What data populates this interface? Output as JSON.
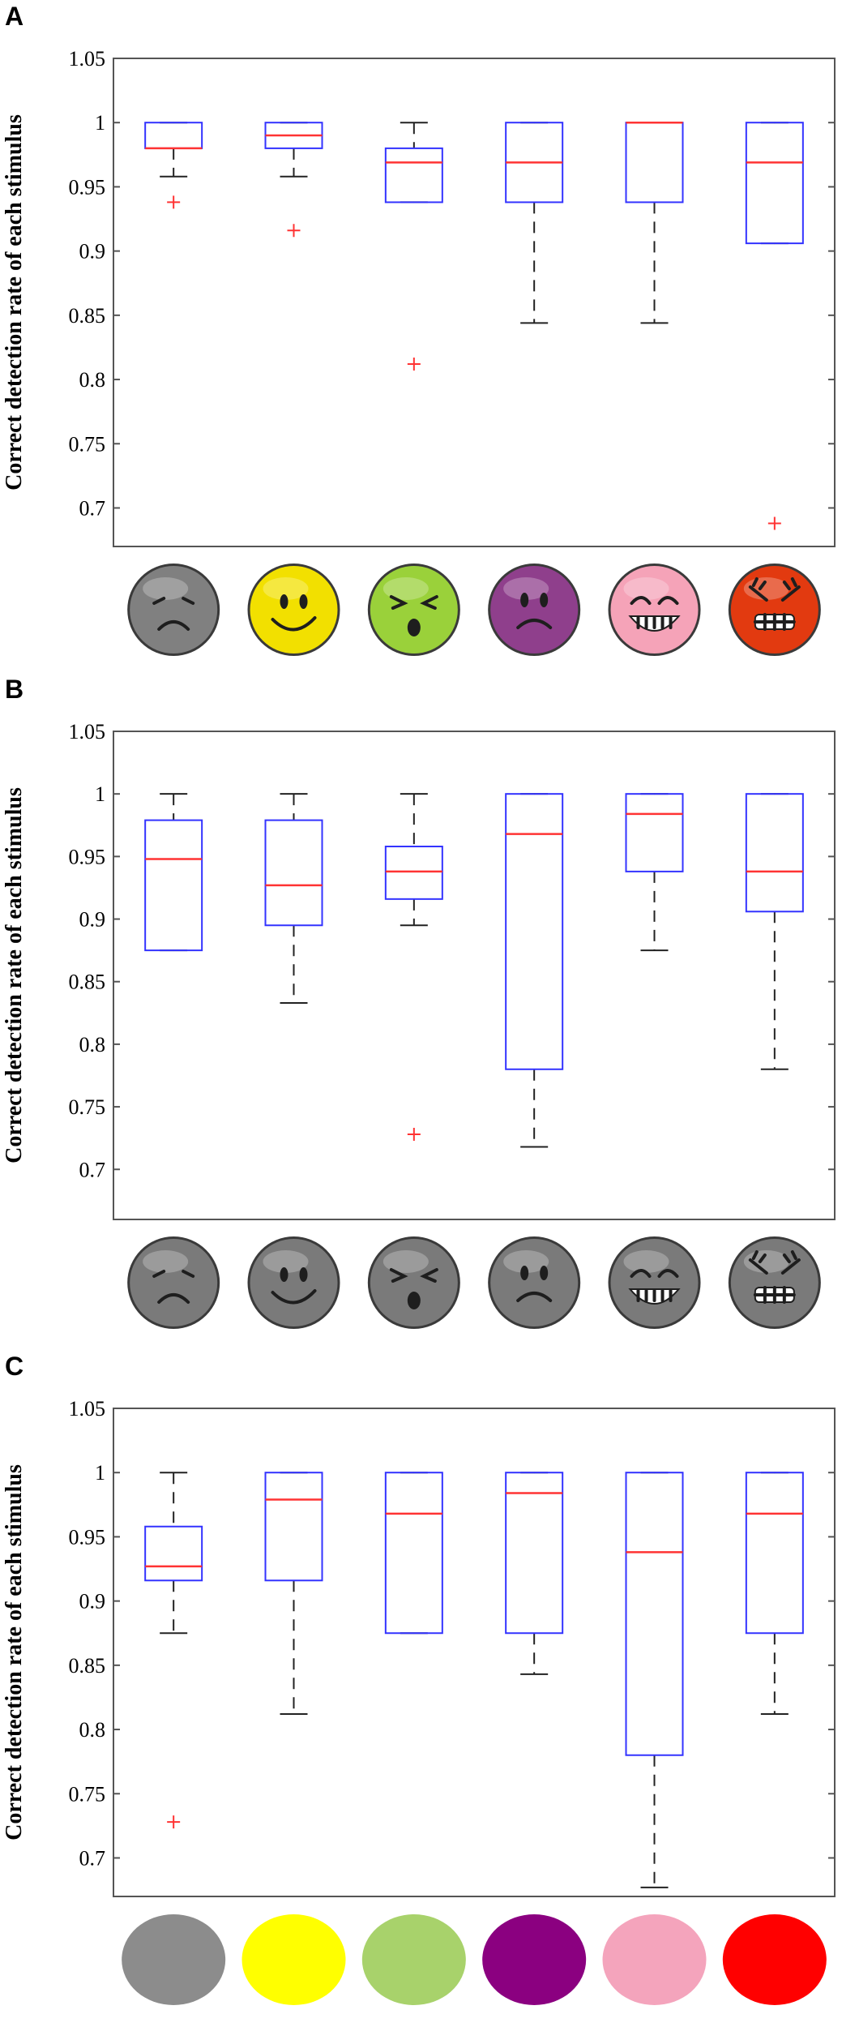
{
  "panels": [
    {
      "letter": "A",
      "icon_style": "color-face",
      "chart_data": {
        "type": "box",
        "ylabel": "Correct detection rate of each stimulus",
        "ylim": [
          0.67,
          1.05
        ],
        "yticks": [
          0.7,
          0.75,
          0.8,
          0.85,
          0.9,
          0.95,
          1,
          1.05
        ],
        "ytick_labels": [
          "0.7",
          "0.75",
          "0.8",
          "0.85",
          "0.9",
          "0.95",
          "1",
          "1.05"
        ],
        "categories": [
          "sad",
          "happy",
          "disgust",
          "sorrow",
          "laugh",
          "angry"
        ],
        "boxes": [
          {
            "whisker_low": 0.958,
            "q1": 0.98,
            "median": 0.98,
            "q3": 1.0,
            "whisker_high": 1.0,
            "outliers": [
              0.938
            ]
          },
          {
            "whisker_low": 0.958,
            "q1": 0.98,
            "median": 0.99,
            "q3": 1.0,
            "whisker_high": 1.0,
            "outliers": [
              0.916
            ]
          },
          {
            "whisker_low": 0.938,
            "q1": 0.938,
            "median": 0.969,
            "q3": 0.98,
            "whisker_high": 1.0,
            "outliers": [
              0.812
            ]
          },
          {
            "whisker_low": 0.844,
            "q1": 0.938,
            "median": 0.969,
            "q3": 1.0,
            "whisker_high": 1.0,
            "outliers": []
          },
          {
            "whisker_low": 0.844,
            "q1": 0.938,
            "median": 1.0,
            "q3": 1.0,
            "whisker_high": 1.0,
            "outliers": []
          },
          {
            "whisker_low": 0.906,
            "q1": 0.906,
            "median": 0.969,
            "q3": 1.0,
            "whisker_high": 1.0,
            "outliers": [
              0.688
            ]
          }
        ]
      }
    },
    {
      "letter": "B",
      "icon_style": "gray-face",
      "chart_data": {
        "type": "box",
        "ylabel": "Correct detection rate of each stimulus",
        "ylim": [
          0.66,
          1.05
        ],
        "yticks": [
          0.7,
          0.75,
          0.8,
          0.85,
          0.9,
          0.95,
          1,
          1.05
        ],
        "ytick_labels": [
          "0.7",
          "0.75",
          "0.8",
          "0.85",
          "0.9",
          "0.95",
          "1",
          "1.05"
        ],
        "categories": [
          "sad",
          "happy",
          "disgust",
          "sorrow",
          "laugh",
          "angry"
        ],
        "boxes": [
          {
            "whisker_low": 0.875,
            "q1": 0.875,
            "median": 0.948,
            "q3": 0.979,
            "whisker_high": 1.0,
            "outliers": []
          },
          {
            "whisker_low": 0.833,
            "q1": 0.895,
            "median": 0.927,
            "q3": 0.979,
            "whisker_high": 1.0,
            "outliers": []
          },
          {
            "whisker_low": 0.895,
            "q1": 0.916,
            "median": 0.938,
            "q3": 0.958,
            "whisker_high": 1.0,
            "outliers": [
              0.728
            ]
          },
          {
            "whisker_low": 0.718,
            "q1": 0.78,
            "median": 0.968,
            "q3": 1.0,
            "whisker_high": 1.0,
            "outliers": []
          },
          {
            "whisker_low": 0.875,
            "q1": 0.938,
            "median": 0.984,
            "q3": 1.0,
            "whisker_high": 1.0,
            "outliers": []
          },
          {
            "whisker_low": 0.78,
            "q1": 0.906,
            "median": 0.938,
            "q3": 1.0,
            "whisker_high": 1.0,
            "outliers": []
          }
        ]
      }
    },
    {
      "letter": "C",
      "icon_style": "color-disc",
      "chart_data": {
        "type": "box",
        "ylabel": "Correct detection rate of each stimulus",
        "ylim": [
          0.67,
          1.05
        ],
        "yticks": [
          0.7,
          0.75,
          0.8,
          0.85,
          0.9,
          0.95,
          1,
          1.05
        ],
        "ytick_labels": [
          "0.7",
          "0.75",
          "0.8",
          "0.85",
          "0.9",
          "0.95",
          "1",
          "1.05"
        ],
        "categories": [
          "gray",
          "yellow",
          "green",
          "purple",
          "pink",
          "red"
        ],
        "boxes": [
          {
            "whisker_low": 0.875,
            "q1": 0.916,
            "median": 0.927,
            "q3": 0.958,
            "whisker_high": 1.0,
            "outliers": [
              0.728
            ]
          },
          {
            "whisker_low": 0.812,
            "q1": 0.916,
            "median": 0.979,
            "q3": 1.0,
            "whisker_high": 1.0,
            "outliers": []
          },
          {
            "whisker_low": 0.875,
            "q1": 0.875,
            "median": 0.968,
            "q3": 1.0,
            "whisker_high": 1.0,
            "outliers": []
          },
          {
            "whisker_low": 0.843,
            "q1": 0.875,
            "median": 0.984,
            "q3": 1.0,
            "whisker_high": 1.0,
            "outliers": []
          },
          {
            "whisker_low": 0.677,
            "q1": 0.78,
            "median": 0.938,
            "q3": 1.0,
            "whisker_high": 1.0,
            "outliers": []
          },
          {
            "whisker_low": 0.812,
            "q1": 0.875,
            "median": 0.968,
            "q3": 1.0,
            "whisker_high": 1.0,
            "outliers": []
          }
        ]
      }
    }
  ],
  "colors": {
    "box": "#3333ff",
    "median": "#ff3333",
    "whisker": "#222222",
    "outlier": "#ff3333",
    "face_colors": [
      "#808080",
      "#f2e000",
      "#9ad13a",
      "#8f3f8c",
      "#f5a3b8",
      "#e23a10"
    ],
    "face_gray": "#7a7a7a",
    "disc_colors": [
      "#8c8c8c",
      "#ffff00",
      "#a8d26b",
      "#8b0080",
      "#f4a4bc",
      "#ff0000"
    ]
  }
}
